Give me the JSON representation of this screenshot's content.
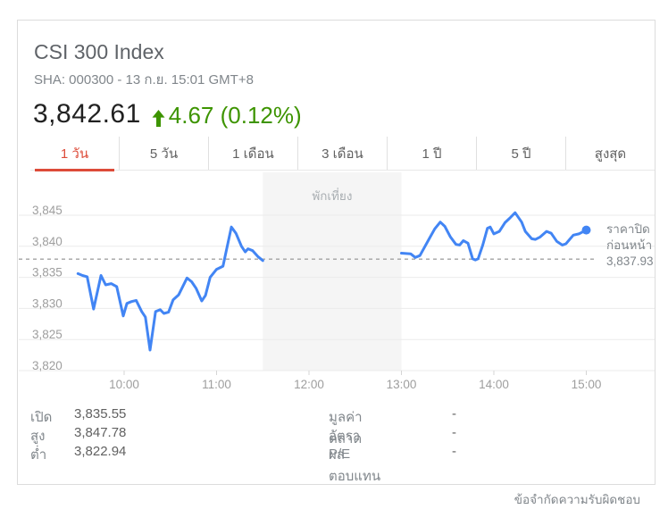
{
  "header": {
    "title": "CSI 300 Index",
    "subtitle": "SHA: 000300 - 13 ก.ย. 15:01 GMT+8",
    "price": "3,842.61",
    "change": "4.67 (0.12%)",
    "change_direction": "up",
    "change_color": "#3d9400"
  },
  "tabs": [
    {
      "label": "1 วัน",
      "selected": true
    },
    {
      "label": "5 วัน",
      "selected": false
    },
    {
      "label": "1 เดือน",
      "selected": false
    },
    {
      "label": "3 เดือน",
      "selected": false
    },
    {
      "label": "1 ปี",
      "selected": false
    },
    {
      "label": "5 ปี",
      "selected": false
    },
    {
      "label": "สูงสุด",
      "selected": false
    }
  ],
  "chart_data": {
    "type": "line",
    "title": "CSI 300 Index intraday",
    "line_color": "#4285f4",
    "session_hours": [
      [
        9.5,
        11.5
      ],
      [
        13.0,
        15.0
      ]
    ],
    "y_ticks": [
      {
        "label": "3,820",
        "value": 3820
      },
      {
        "label": "3,825",
        "value": 3825
      },
      {
        "label": "3,830",
        "value": 3830
      },
      {
        "label": "3,835",
        "value": 3835
      },
      {
        "label": "3,840",
        "value": 3840
      },
      {
        "label": "3,845",
        "value": 3845
      }
    ],
    "x_ticks": [
      {
        "label": "10:00",
        "hour": 10
      },
      {
        "label": "11:00",
        "hour": 11
      },
      {
        "label": "12:00",
        "hour": 12
      },
      {
        "label": "13:00",
        "hour": 13
      },
      {
        "label": "14:00",
        "hour": 14
      },
      {
        "label": "15:00",
        "hour": 15
      }
    ],
    "ylim": [
      3820,
      3845
    ],
    "grid": true,
    "series": [
      {
        "name": "morning-session",
        "points": [
          [
            9.5,
            3835.6
          ],
          [
            9.55,
            3835.3
          ],
          [
            9.6,
            3835.1
          ],
          [
            9.67,
            3829.9
          ],
          [
            9.75,
            3835.3
          ],
          [
            9.8,
            3833.8
          ],
          [
            9.86,
            3834.0
          ],
          [
            9.92,
            3833.5
          ],
          [
            9.99,
            3828.8
          ],
          [
            10.03,
            3830.8
          ],
          [
            10.08,
            3831.1
          ],
          [
            10.13,
            3831.3
          ],
          [
            10.19,
            3829.5
          ],
          [
            10.23,
            3828.6
          ],
          [
            10.28,
            3823.3
          ],
          [
            10.34,
            3829.5
          ],
          [
            10.39,
            3829.8
          ],
          [
            10.43,
            3829.2
          ],
          [
            10.48,
            3829.4
          ],
          [
            10.53,
            3831.4
          ],
          [
            10.59,
            3832.2
          ],
          [
            10.68,
            3834.9
          ],
          [
            10.73,
            3834.3
          ],
          [
            10.78,
            3833.2
          ],
          [
            10.84,
            3831.2
          ],
          [
            10.88,
            3832.1
          ],
          [
            10.93,
            3835.0
          ],
          [
            11.0,
            3836.3
          ],
          [
            11.07,
            3836.8
          ],
          [
            11.16,
            3843.1
          ],
          [
            11.21,
            3842.1
          ],
          [
            11.27,
            3840.0
          ],
          [
            11.31,
            3839.1
          ],
          [
            11.34,
            3839.6
          ],
          [
            11.39,
            3839.3
          ],
          [
            11.45,
            3838.3
          ],
          [
            11.5,
            3837.7
          ]
        ]
      },
      {
        "name": "afternoon-session",
        "points": [
          [
            13.0,
            3838.9
          ],
          [
            13.1,
            3838.8
          ],
          [
            13.15,
            3838.2
          ],
          [
            13.2,
            3838.5
          ],
          [
            13.3,
            3841.2
          ],
          [
            13.36,
            3842.8
          ],
          [
            13.42,
            3843.9
          ],
          [
            13.47,
            3843.2
          ],
          [
            13.53,
            3841.5
          ],
          [
            13.59,
            3840.3
          ],
          [
            13.63,
            3840.2
          ],
          [
            13.67,
            3840.9
          ],
          [
            13.72,
            3840.5
          ],
          [
            13.77,
            3838.0
          ],
          [
            13.8,
            3837.8
          ],
          [
            13.83,
            3838.0
          ],
          [
            13.88,
            3840.2
          ],
          [
            13.93,
            3842.9
          ],
          [
            13.96,
            3843.1
          ],
          [
            14.0,
            3842.0
          ],
          [
            14.06,
            3842.4
          ],
          [
            14.12,
            3843.8
          ],
          [
            14.17,
            3844.5
          ],
          [
            14.23,
            3845.4
          ],
          [
            14.3,
            3843.9
          ],
          [
            14.34,
            3842.4
          ],
          [
            14.41,
            3841.2
          ],
          [
            14.45,
            3841.1
          ],
          [
            14.5,
            3841.5
          ],
          [
            14.57,
            3842.4
          ],
          [
            14.62,
            3842.1
          ],
          [
            14.68,
            3840.8
          ],
          [
            14.74,
            3840.2
          ],
          [
            14.78,
            3840.4
          ],
          [
            14.86,
            3841.8
          ],
          [
            14.92,
            3842.0
          ],
          [
            15.0,
            3842.61
          ]
        ]
      }
    ],
    "last_price": 3842.61,
    "previous_close": {
      "value": 3837.93,
      "label_lines": [
        "ราคาปิด",
        "ก่อนหน้า",
        "3,837.93"
      ]
    },
    "lunch_break": {
      "label": "พักเที่ยง",
      "start_hour": 11.5,
      "end_hour": 13.0
    }
  },
  "stats": {
    "left": [
      {
        "label": "เปิด",
        "value": "3,835.55"
      },
      {
        "label": "สูง",
        "value": "3,847.78"
      },
      {
        "label": "ต่ำ",
        "value": "3,822.94"
      }
    ],
    "right": [
      {
        "label": "มูลค่าตลาด",
        "value": "-"
      },
      {
        "label": "อัตรา P/E",
        "value": "-"
      },
      {
        "label": "ผลตอบแทน",
        "value": "-"
      }
    ]
  },
  "footer": {
    "disclaimer": "ข้อจำกัดความรับผิดชอบ"
  }
}
